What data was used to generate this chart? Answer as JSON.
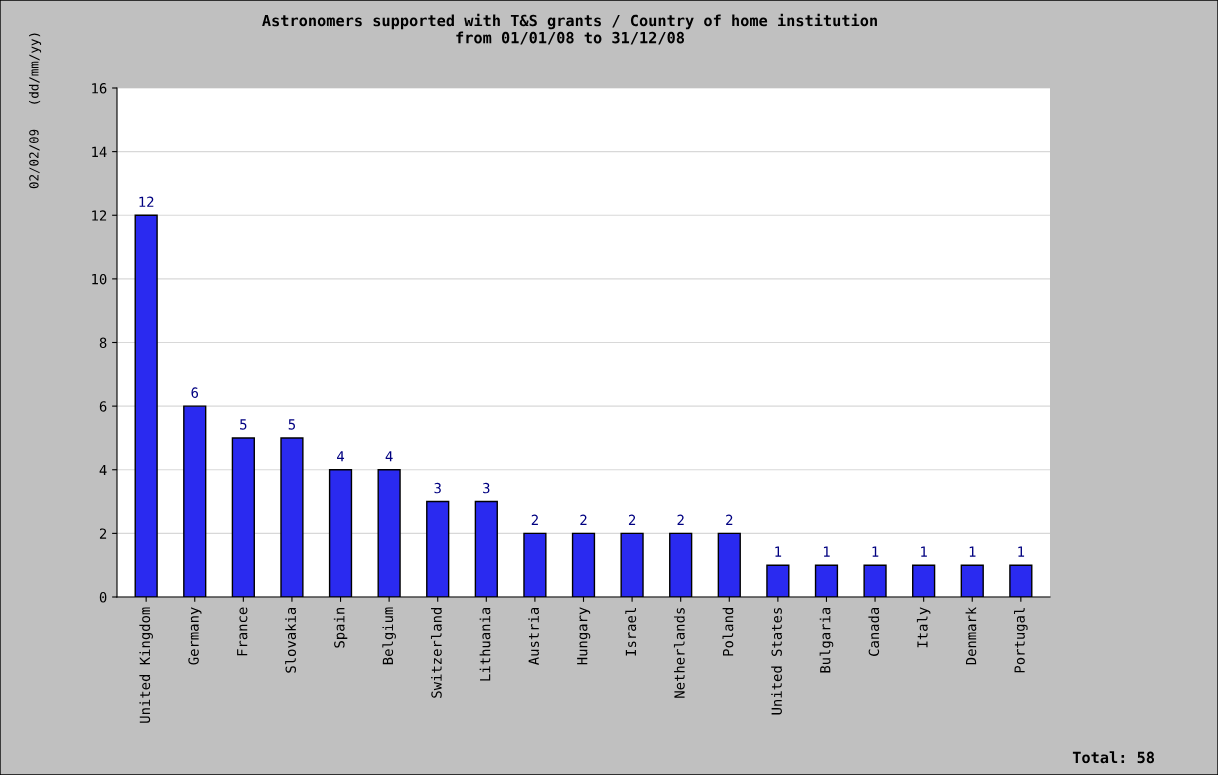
{
  "chart_data": {
    "type": "bar",
    "title": "Astronomers supported with T&S grants / Country of home institution\nfrom 01/01/08 to 31/12/08",
    "categories": [
      "United Kingdom",
      "Germany",
      "France",
      "Slovakia",
      "Spain",
      "Belgium",
      "Switzerland",
      "Lithuania",
      "Austria",
      "Hungary",
      "Israel",
      "Netherlands",
      "Poland",
      "United States",
      "Bulgaria",
      "Canada",
      "Italy",
      "Denmark",
      "Portugal"
    ],
    "values": [
      12,
      6,
      5,
      5,
      4,
      4,
      3,
      3,
      2,
      2,
      2,
      2,
      2,
      1,
      1,
      1,
      1,
      1,
      1
    ],
    "color": "#2a2af0",
    "ylim": [
      0,
      16
    ],
    "yticks": [
      0,
      2,
      4,
      6,
      8,
      10,
      12,
      14,
      16
    ],
    "grid": "y",
    "data_labels": true,
    "annotations": [
      "02/02/09   (dd/mm/yy)",
      "Total: 58"
    ]
  }
}
